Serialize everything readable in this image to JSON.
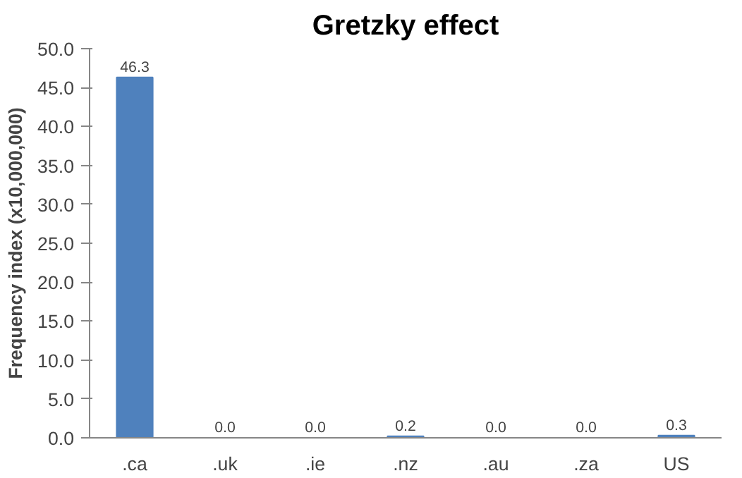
{
  "chart_data": {
    "type": "bar",
    "title": "Gretzky effect",
    "ylabel": "Frequency index (x10,000,000)",
    "categories": [
      ".ca",
      ".uk",
      ".ie",
      ".nz",
      ".au",
      ".za",
      "US"
    ],
    "values": [
      46.3,
      0.0,
      0.0,
      0.2,
      0.0,
      0.0,
      0.3
    ],
    "value_labels": [
      "46.3",
      "0.0",
      "0.0",
      "0.2",
      "0.0",
      "0.0",
      "0.3"
    ],
    "color": "#4f81bd",
    "ylim": [
      0,
      50
    ],
    "yticks": [
      {
        "value": 0,
        "label": "0.0"
      },
      {
        "value": 5,
        "label": "5.0"
      },
      {
        "value": 10,
        "label": "10.0"
      },
      {
        "value": 15,
        "label": "15.0"
      },
      {
        "value": 20,
        "label": "20.0"
      },
      {
        "value": 25,
        "label": "25.0"
      },
      {
        "value": 30,
        "label": "30.0"
      },
      {
        "value": 35,
        "label": "35.0"
      },
      {
        "value": 40,
        "label": "40.0"
      },
      {
        "value": 45,
        "label": "45.0"
      },
      {
        "value": 50,
        "label": "50.0"
      }
    ],
    "grid": false
  }
}
